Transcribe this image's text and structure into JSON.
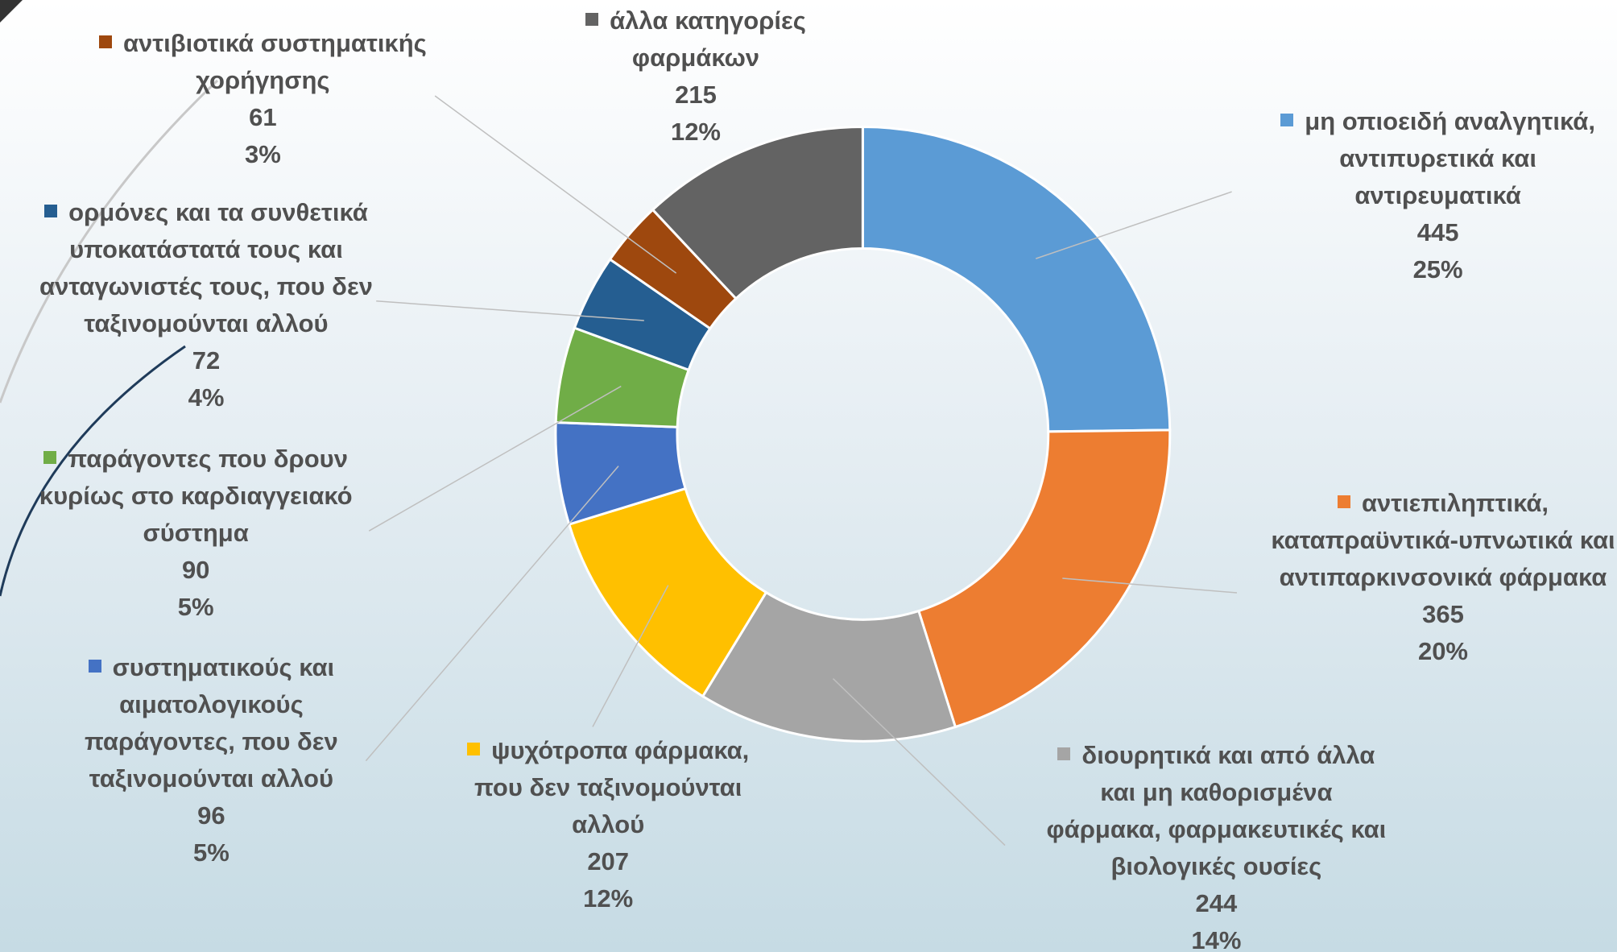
{
  "chart_data": {
    "type": "donut",
    "categories": [
      "μη οπιοειδή αναλγητικά, αντιπυρετικά και αντιρευματικά",
      "αντιεπιληπτικά, καταπραϋντικά-υπνωτικά και αντιπαρκινσονικά φάρμακα",
      "διουρητικά και από άλλα και μη καθορισμένα φάρμακα, φαρμακευτικές και βιολογικές ουσίες",
      "ψυχότροπα φάρμακα, που δεν ταξινομούνται αλλού",
      "συστηματικούς και αιματολογικούς παράγοντες, που δεν ταξινομούνται αλλού",
      "παράγοντες που δρουν κυρίως στο καρδιαγγειακό σύστημα",
      "ορμόνες και τα συνθετικά υποκατάστατά τους και ανταγωνιστές τους, που δεν ταξινομούνται αλλού",
      "αντιβιοτικά συστηματικής χορήγησης",
      "άλλα κατηγορίες φαρμάκων"
    ],
    "values": [
      445,
      365,
      244,
      207,
      96,
      90,
      72,
      61,
      215
    ],
    "percent_labels": [
      "25%",
      "20%",
      "14%",
      "12%",
      "5%",
      "5%",
      "4%",
      "3%",
      "12%"
    ],
    "colors": [
      "#5b9bd5",
      "#ed7d31",
      "#a5a5a5",
      "#ffc000",
      "#4472c4",
      "#70ad47",
      "#255e91",
      "#9e480e",
      "#636363"
    ]
  }
}
